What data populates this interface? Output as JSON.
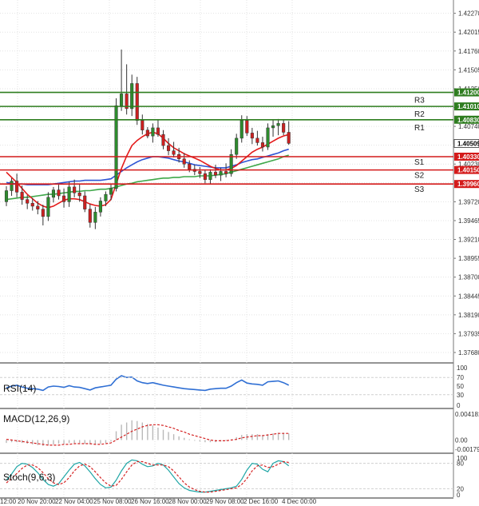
{
  "chart_data": [
    {
      "type": "candlestick",
      "panel": "price",
      "ylim": [
        1.3755,
        1.4245
      ],
      "y_ticks": [
        "1.42270",
        "1.42015",
        "1.41760",
        "1.41505",
        "1.41250",
        "1.40995",
        "1.40740",
        "1.40485",
        "1.40230",
        "1.39975",
        "1.39720",
        "1.39465",
        "1.39210",
        "1.38955",
        "1.38700",
        "1.38445",
        "1.38190",
        "1.37935",
        "1.37680"
      ],
      "x_labels": [
        "12:00",
        "20 Nov 20:00",
        "22 Nov 04:00",
        "25 Nov 08:00",
        "26 Nov 16:00",
        "28 Nov 00:00",
        "29 Nov 08:00",
        "2 Dec 16:00",
        "4 Dec 00:00"
      ],
      "current_price": "1.40509",
      "levels": [
        {
          "name": "R3",
          "value": 1.412,
          "label": "1.41200",
          "color": "#2e7d1f"
        },
        {
          "name": "R2",
          "value": 1.4101,
          "label": "1.41010",
          "color": "#2e7d1f"
        },
        {
          "name": "R1",
          "value": 1.4083,
          "label": "1.40830",
          "color": "#2e7d1f"
        },
        {
          "name": "S1",
          "value": 1.4033,
          "label": "1.40330",
          "color": "#d41a1a"
        },
        {
          "name": "S2",
          "value": 1.4015,
          "label": "1.40150",
          "color": "#d41a1a"
        },
        {
          "name": "S3",
          "value": 1.3996,
          "label": "1.39960",
          "color": "#d41a1a"
        }
      ],
      "candles": [
        [
          1.3972,
          1.3993,
          1.3966,
          1.3987
        ],
        [
          1.3987,
          1.4004,
          1.398,
          1.4
        ],
        [
          1.4,
          1.401,
          1.3978,
          1.3985
        ],
        [
          1.3985,
          1.3994,
          1.3968,
          1.3975
        ],
        [
          1.3975,
          1.3981,
          1.3962,
          1.397
        ],
        [
          1.397,
          1.3977,
          1.396,
          1.3966
        ],
        [
          1.3966,
          1.3973,
          1.3955,
          1.3962
        ],
        [
          1.3962,
          1.3968,
          1.394,
          1.3952
        ],
        [
          1.3952,
          1.3985,
          1.3946,
          1.3978
        ],
        [
          1.3978,
          1.3992,
          1.3971,
          1.3988
        ],
        [
          1.3988,
          1.3995,
          1.3975,
          1.398
        ],
        [
          1.398,
          1.399,
          1.3964,
          1.3972
        ],
        [
          1.3972,
          1.3999,
          1.3965,
          1.3992
        ],
        [
          1.3992,
          1.4002,
          1.3978,
          1.3984
        ],
        [
          1.3984,
          1.3996,
          1.3972,
          1.398
        ],
        [
          1.398,
          1.3986,
          1.3958,
          1.3962
        ],
        [
          1.3962,
          1.3969,
          1.3937,
          1.3944
        ],
        [
          1.3944,
          1.3965,
          1.3935,
          1.3958
        ],
        [
          1.3958,
          1.3978,
          1.3952,
          1.3973
        ],
        [
          1.3973,
          1.3986,
          1.3966,
          1.3982
        ],
        [
          1.3982,
          1.3996,
          1.3974,
          1.399
        ],
        [
          1.399,
          1.4112,
          1.3986,
          1.4102
        ],
        [
          1.4102,
          1.4178,
          1.4095,
          1.4118
        ],
        [
          1.4118,
          1.4158,
          1.409,
          1.4098
        ],
        [
          1.4098,
          1.4144,
          1.4088,
          1.4132
        ],
        [
          1.4132,
          1.4141,
          1.4076,
          1.4082
        ],
        [
          1.4082,
          1.409,
          1.4063,
          1.4069
        ],
        [
          1.4069,
          1.4073,
          1.4058,
          1.4061
        ],
        [
          1.4061,
          1.4078,
          1.4052,
          1.4072
        ],
        [
          1.4072,
          1.4083,
          1.406,
          1.4063
        ],
        [
          1.4063,
          1.4069,
          1.4043,
          1.4048
        ],
        [
          1.4048,
          1.4058,
          1.4035,
          1.4041
        ],
        [
          1.4041,
          1.4053,
          1.4032,
          1.4036
        ],
        [
          1.4036,
          1.4045,
          1.4025,
          1.403
        ],
        [
          1.403,
          1.4038,
          1.4018,
          1.4023
        ],
        [
          1.4023,
          1.4028,
          1.4012,
          1.4016
        ],
        [
          1.4016,
          1.4022,
          1.4008,
          1.4013
        ],
        [
          1.4013,
          1.4019,
          1.4004,
          1.401
        ],
        [
          1.401,
          1.4015,
          1.3997,
          1.4002
        ],
        [
          1.4002,
          1.4016,
          1.3996,
          1.4012
        ],
        [
          1.4012,
          1.4022,
          1.4004,
          1.4008
        ],
        [
          1.4008,
          1.4018,
          1.4,
          1.4013
        ],
        [
          1.4013,
          1.4024,
          1.4005,
          1.401
        ],
        [
          1.401,
          1.4043,
          1.4006,
          1.4036
        ],
        [
          1.4036,
          1.4064,
          1.403,
          1.4058
        ],
        [
          1.4058,
          1.4089,
          1.4052,
          1.4082
        ],
        [
          1.4082,
          1.4088,
          1.4061,
          1.4065
        ],
        [
          1.4065,
          1.4072,
          1.405,
          1.4058
        ],
        [
          1.4058,
          1.4068,
          1.4048,
          1.4052
        ],
        [
          1.4052,
          1.406,
          1.404,
          1.4046
        ],
        [
          1.4046,
          1.4078,
          1.4042,
          1.4072
        ],
        [
          1.4072,
          1.4083,
          1.406,
          1.4075
        ],
        [
          1.4075,
          1.4084,
          1.4062,
          1.4078
        ],
        [
          1.4078,
          1.4083,
          1.4062,
          1.4066
        ],
        [
          1.4066,
          1.4081,
          1.4049,
          1.4051
        ]
      ],
      "sma_fast": [
        1.4012,
        1.4005,
        1.3998,
        1.399,
        1.3982,
        1.3976,
        1.397,
        1.3966,
        1.3964,
        1.3966,
        1.397,
        1.3974,
        1.3976,
        1.3976,
        1.3975,
        1.3972,
        1.3969,
        1.3967,
        1.3966,
        1.3968,
        1.3975,
        1.3996,
        1.4017,
        1.4034,
        1.4048,
        1.4055,
        1.406,
        1.4064,
        1.4066,
        1.4064,
        1.4058,
        1.4051,
        1.4045,
        1.4041,
        1.4037,
        1.4034,
        1.4031,
        1.4028,
        1.4024,
        1.402,
        1.4017,
        1.4015,
        1.4015,
        1.4017,
        1.4021,
        1.4027,
        1.4033,
        1.4039,
        1.4043,
        1.4046,
        1.405,
        1.4054,
        1.4058,
        1.4061,
        1.4063
      ],
      "sma_mid": [
        1.3998,
        1.3997,
        1.3996,
        1.3996,
        1.3995,
        1.3995,
        1.3995,
        1.3995,
        1.3995,
        1.3996,
        1.3997,
        1.3998,
        1.3999,
        1.4,
        1.4,
        1.4001,
        1.4001,
        1.4001,
        1.4001,
        1.4002,
        1.4003,
        1.4008,
        1.4013,
        1.4018,
        1.4022,
        1.4026,
        1.4029,
        1.4031,
        1.4033,
        1.4033,
        1.4032,
        1.4031,
        1.4029,
        1.4027,
        1.4026,
        1.4024,
        1.4022,
        1.4021,
        1.402,
        1.4019,
        1.4018,
        1.4018,
        1.4018,
        1.402,
        1.4022,
        1.4025,
        1.4027,
        1.4029,
        1.403,
        1.4032,
        1.4034,
        1.4036,
        1.4038,
        1.4041,
        1.4043
      ],
      "sma_slow": [
        1.3975,
        1.3976,
        1.3977,
        1.3978,
        1.3978,
        1.3979,
        1.398,
        1.3981,
        1.3982,
        1.3982,
        1.3983,
        1.3984,
        1.3985,
        1.3986,
        1.3986,
        1.3987,
        1.3987,
        1.3988,
        1.3989,
        1.3989,
        1.399,
        1.3992,
        1.3994,
        1.3996,
        1.3997,
        1.3999,
        1.4,
        1.4001,
        1.4002,
        1.4003,
        1.4004,
        1.4004,
        1.4005,
        1.4005,
        1.4006,
        1.4006,
        1.4006,
        1.4007,
        1.4007,
        1.4007,
        1.4008,
        1.4009,
        1.401,
        1.4012,
        1.4014,
        1.4016,
        1.4018,
        1.402,
        1.4022,
        1.4024,
        1.4026,
        1.4028,
        1.403,
        1.4033,
        1.4035
      ],
      "colors": {
        "bull": "#2e8b2e",
        "bear": "#cc2020",
        "sma_fast": "#e41a1a",
        "sma_mid": "#2f55d4",
        "sma_slow": "#3fa84a",
        "grid": "#e3e3e3",
        "current_badge": "#ffffff"
      }
    },
    {
      "type": "line",
      "panel": "rsi",
      "title": "RSI(14)",
      "ylim": [
        0,
        100
      ],
      "y_ticks": [
        "100",
        "70",
        "50",
        "30",
        "0"
      ],
      "values": [
        46,
        50,
        52,
        48,
        45,
        44,
        43,
        40,
        48,
        50,
        49,
        47,
        51,
        48,
        47,
        44,
        41,
        46,
        48,
        50,
        52,
        66,
        74,
        70,
        71,
        62,
        58,
        56,
        58,
        55,
        52,
        50,
        48,
        46,
        44,
        43,
        42,
        41,
        40,
        43,
        44,
        45,
        45,
        50,
        58,
        64,
        57,
        55,
        54,
        52,
        60,
        61,
        62,
        58,
        52
      ],
      "color": "#2f6fd4"
    },
    {
      "type": "bar+line",
      "panel": "macd",
      "title": "MACD(12,26,9)",
      "ylim": [
        -0.0017,
        0.0041
      ],
      "y_ticks": [
        "0.004181",
        "0.00",
        "-0.00179"
      ],
      "histogram": [
        -0.0004,
        -0.0003,
        -0.0003,
        -0.0004,
        -0.0005,
        -0.0006,
        -0.0007,
        -0.0008,
        -0.0007,
        -0.0006,
        -0.0005,
        -0.0005,
        -0.0004,
        -0.0004,
        -0.0004,
        -0.0005,
        -0.0006,
        -0.0006,
        -0.0005,
        -0.0004,
        -0.0002,
        0.0012,
        0.0021,
        0.0024,
        0.0027,
        0.0026,
        0.0024,
        0.0022,
        0.002,
        0.0017,
        0.0014,
        0.0011,
        0.0008,
        0.0005,
        0.0003,
        0.0001,
        -0.0001,
        -0.0002,
        -0.0003,
        -0.0003,
        -0.0003,
        -0.0002,
        -0.0001,
        0.0001,
        0.0004,
        0.0007,
        0.0008,
        0.0008,
        0.0008,
        0.0007,
        0.0008,
        0.0009,
        0.001,
        0.001,
        0.0009
      ],
      "signal": [
        0.0001,
        0.0,
        -0.0001,
        -0.0002,
        -0.0003,
        -0.0004,
        -0.0005,
        -0.0006,
        -0.0007,
        -0.0007,
        -0.0007,
        -0.0006,
        -0.0006,
        -0.0005,
        -0.0005,
        -0.0005,
        -0.0005,
        -0.0006,
        -0.0006,
        -0.0005,
        -0.0004,
        0.0,
        0.0004,
        0.0008,
        0.0012,
        0.0015,
        0.0018,
        0.002,
        0.0021,
        0.0021,
        0.002,
        0.0018,
        0.0016,
        0.0013,
        0.0011,
        0.0008,
        0.0006,
        0.0004,
        0.0002,
        0.0,
        -0.0001,
        -0.0001,
        -0.0001,
        0.0,
        0.0001,
        0.0003,
        0.0004,
        0.0005,
        0.0006,
        0.0006,
        0.0007,
        0.0008,
        0.0009,
        0.0009,
        0.0009
      ],
      "colors": {
        "histogram": "#b9b9b9",
        "signal": "#d42020"
      }
    },
    {
      "type": "line",
      "panel": "stochastic",
      "title": "Stoch(9,6,3)",
      "ylim": [
        0,
        100
      ],
      "y_ticks": [
        "100",
        "80",
        "20",
        "0"
      ],
      "k": [
        40,
        55,
        72,
        80,
        78,
        70,
        58,
        42,
        30,
        26,
        32,
        48,
        64,
        78,
        82,
        74,
        60,
        44,
        30,
        22,
        24,
        40,
        62,
        80,
        88,
        86,
        78,
        72,
        74,
        80,
        76,
        64,
        48,
        32,
        22,
        16,
        14,
        12,
        12,
        14,
        16,
        18,
        20,
        22,
        26,
        42,
        64,
        80,
        78,
        66,
        60,
        80,
        86,
        84,
        74
      ],
      "d": [
        34,
        44,
        56,
        68,
        76,
        76,
        70,
        58,
        44,
        34,
        30,
        34,
        46,
        62,
        74,
        78,
        72,
        60,
        46,
        34,
        26,
        28,
        42,
        60,
        76,
        84,
        84,
        80,
        76,
        76,
        76,
        72,
        62,
        48,
        34,
        24,
        18,
        14,
        12,
        12,
        14,
        16,
        18,
        20,
        22,
        30,
        44,
        62,
        74,
        76,
        70,
        72,
        78,
        84,
        82
      ],
      "colors": {
        "k": "#1fa6a6",
        "d": "#d42020"
      }
    }
  ]
}
